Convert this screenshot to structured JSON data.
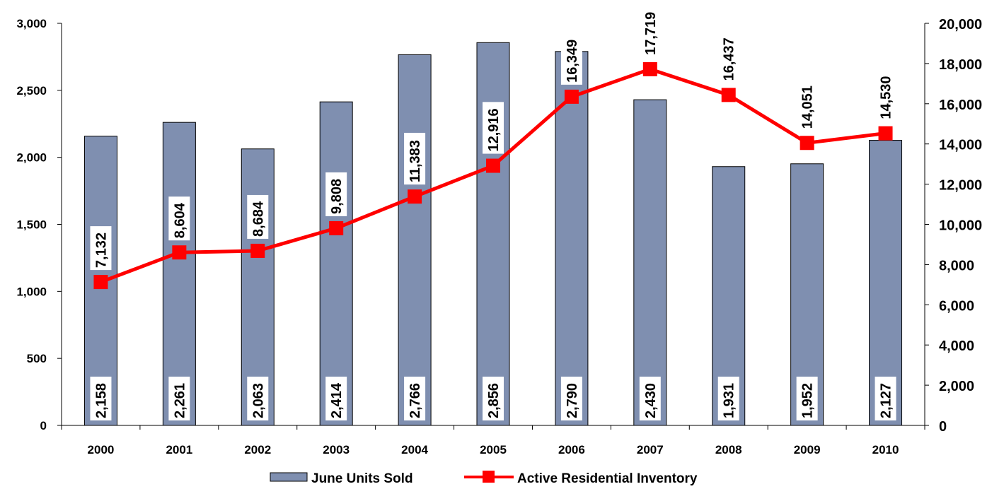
{
  "chart_data": {
    "type": "bar",
    "categories": [
      "2000",
      "2001",
      "2002",
      "2003",
      "2004",
      "2005",
      "2006",
      "2007",
      "2008",
      "2009",
      "2010"
    ],
    "series": [
      {
        "name": "June Units Sold",
        "type": "bar",
        "axis": "left",
        "color": "#7f8fb0",
        "values": [
          2158,
          2261,
          2063,
          2414,
          2766,
          2856,
          2790,
          2430,
          1931,
          1952,
          2127
        ],
        "labels": [
          "2,158",
          "2,261",
          "2,063",
          "2,414",
          "2,766",
          "2,856",
          "2,790",
          "2,430",
          "1,931",
          "1,952",
          "2,127"
        ]
      },
      {
        "name": "Active Residential Inventory",
        "type": "line",
        "axis": "right",
        "color": "#ff0000",
        "values": [
          7132,
          8604,
          8684,
          9808,
          11383,
          12916,
          16349,
          17719,
          16437,
          14051,
          14530
        ],
        "labels": [
          "7,132",
          "8,604",
          "8,684",
          "9,808",
          "11,383",
          "12,916",
          "16,349",
          "17,719",
          "16,437",
          "14,051",
          "14,530"
        ]
      }
    ],
    "y_left": {
      "min": 0,
      "max": 3000,
      "ticks": [
        "0",
        "500",
        "1,000",
        "1,500",
        "2,000",
        "2,500",
        "3,000"
      ]
    },
    "y_right": {
      "min": 0,
      "max": 20000,
      "ticks": [
        "0",
        "2,000",
        "4,000",
        "6,000",
        "8,000",
        "10,000",
        "12,000",
        "14,000",
        "16,000",
        "18,000",
        "20,000"
      ]
    },
    "grid": false,
    "legend_position": "bottom"
  }
}
